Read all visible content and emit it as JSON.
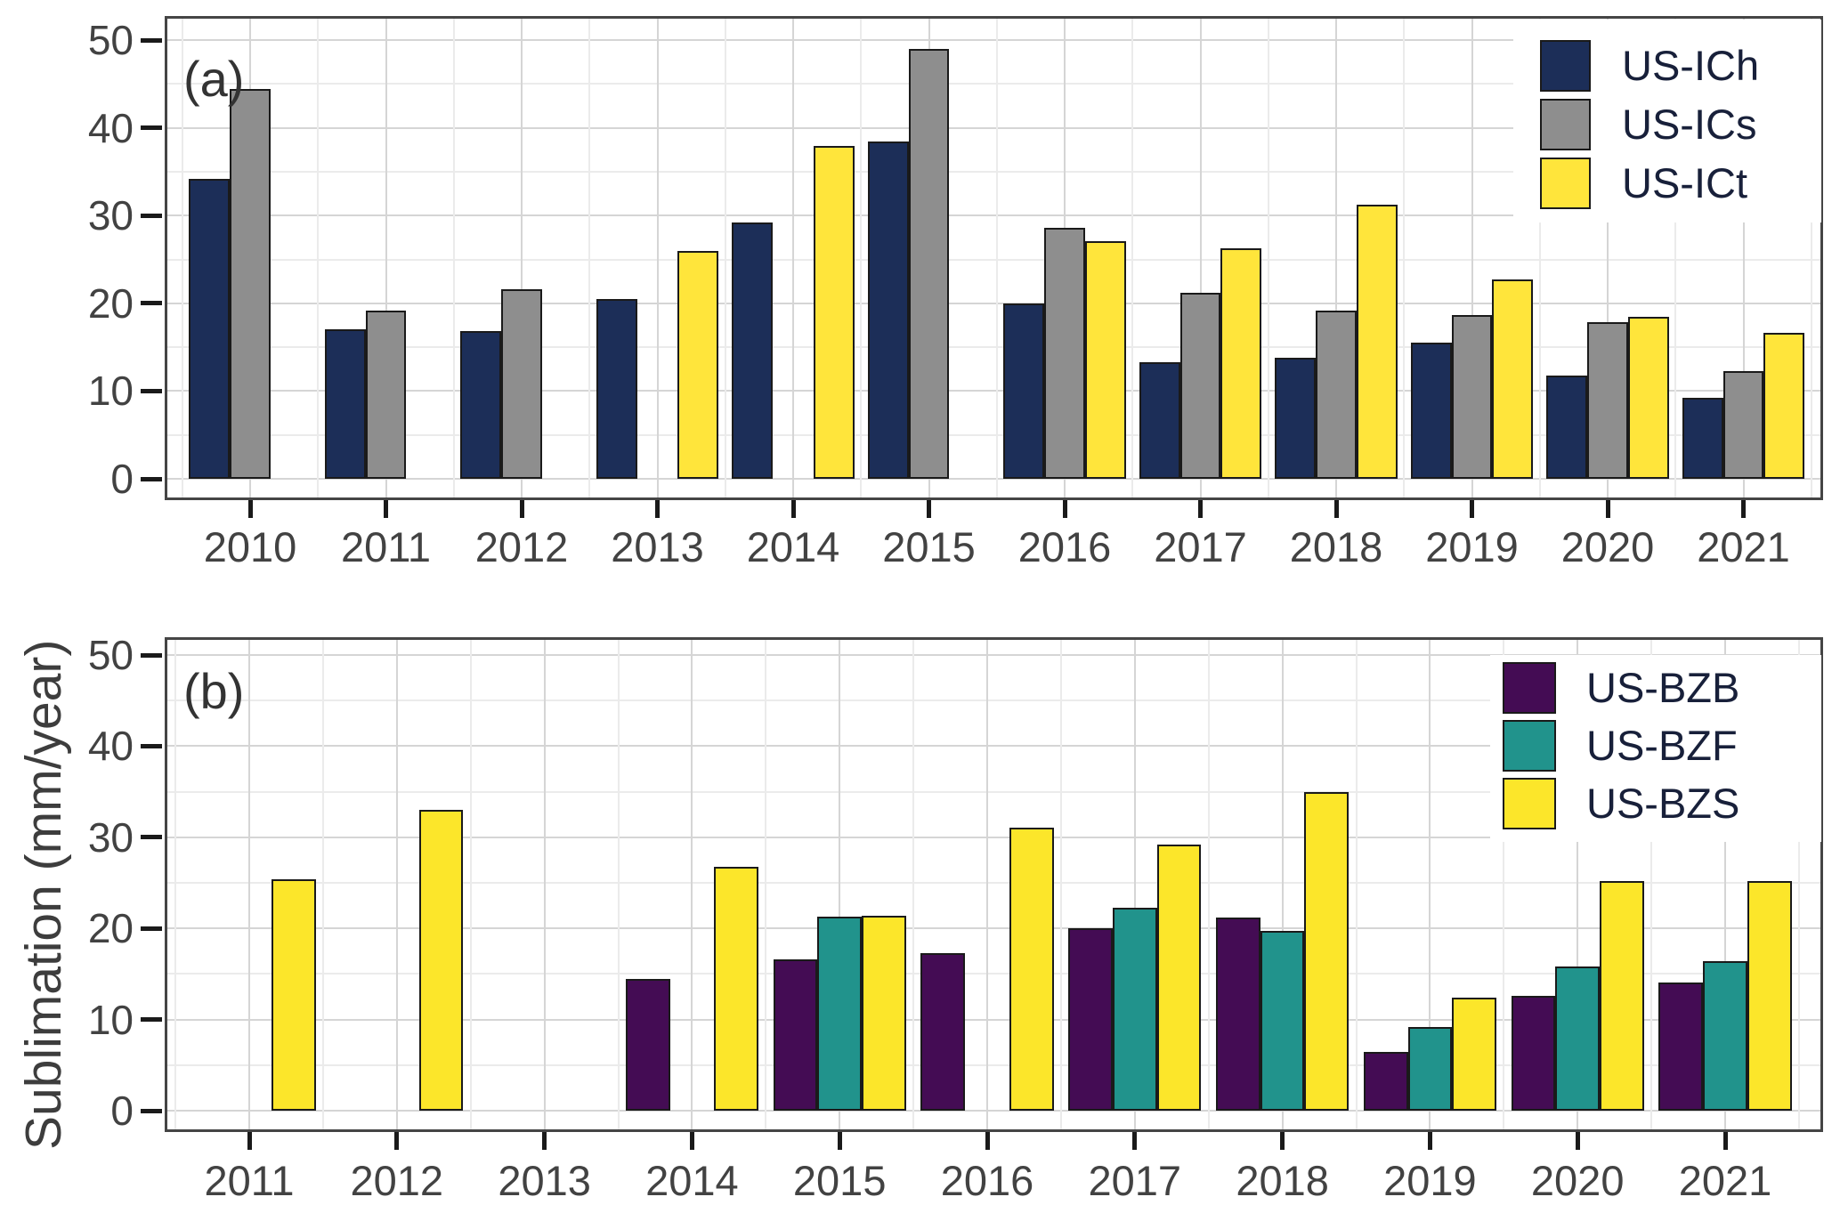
{
  "figure": {
    "ylabel": "Sublimation (mm/year)"
  },
  "chart_data": [
    {
      "type": "bar",
      "tag": "(a)",
      "ylabel": "Sublimation (mm/year)",
      "ylim": [
        0,
        50
      ],
      "yticks": [
        0,
        10,
        20,
        30,
        40,
        50
      ],
      "grid": "horizontal and vertical, major (10 units / each year) plus faint minor (5 units / midyear)",
      "legend_position": "top-right",
      "categories": [
        2010,
        2011,
        2012,
        2013,
        2014,
        2015,
        2016,
        2017,
        2018,
        2019,
        2020,
        2021
      ],
      "series": [
        {
          "name": "US-ICh",
          "color": "#1c2e58",
          "values": [
            34.2,
            17.0,
            16.8,
            20.5,
            29.2,
            38.4,
            20.0,
            13.3,
            13.8,
            15.5,
            11.8,
            9.2
          ]
        },
        {
          "name": "US-ICs",
          "color": "#8e8e8e",
          "values": [
            44.4,
            19.2,
            21.6,
            null,
            null,
            49.0,
            28.6,
            21.2,
            19.2,
            18.7,
            17.8,
            12.3
          ]
        },
        {
          "name": "US-ICt",
          "color": "#ffe53b",
          "values": [
            null,
            null,
            null,
            26.0,
            37.9,
            null,
            27.1,
            26.3,
            31.2,
            22.7,
            18.5,
            16.6
          ]
        }
      ]
    },
    {
      "type": "bar",
      "tag": "(b)",
      "ylabel": "Sublimation (mm/year)",
      "ylim": [
        0,
        50
      ],
      "yticks": [
        0,
        10,
        20,
        30,
        40,
        50
      ],
      "grid": "horizontal and vertical, major (10 units / each year) plus faint minor (5 units / midyear)",
      "legend_position": "top-right",
      "categories": [
        2011,
        2012,
        2013,
        2014,
        2015,
        2016,
        2017,
        2018,
        2019,
        2020,
        2021
      ],
      "series": [
        {
          "name": "US-BZB",
          "color": "#440c54",
          "values": [
            null,
            null,
            null,
            14.5,
            16.6,
            17.3,
            20.0,
            21.2,
            6.4,
            12.6,
            14.1
          ]
        },
        {
          "name": "US-BZF",
          "color": "#21938c",
          "values": [
            null,
            null,
            null,
            null,
            21.3,
            null,
            22.3,
            19.7,
            9.2,
            15.8,
            16.4
          ]
        },
        {
          "name": "US-BZS",
          "color": "#fce62a",
          "values": [
            25.4,
            33.0,
            null,
            26.8,
            21.4,
            31.1,
            29.2,
            35.0,
            12.4,
            25.2,
            25.2
          ]
        }
      ]
    }
  ]
}
